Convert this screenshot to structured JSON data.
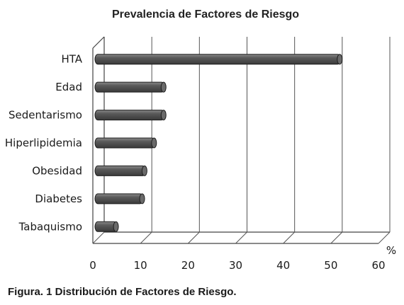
{
  "chart_data": {
    "type": "bar",
    "orientation": "horizontal",
    "title": "Prevalencia de Factores de Riesgo",
    "categories": [
      "HTA",
      "Edad",
      "Sedentarismo",
      "Hiperlipidemia",
      "Obesidad",
      "Diabetes",
      "Tabaquismo"
    ],
    "values": [
      52,
      15,
      15,
      13,
      11,
      10.5,
      5
    ],
    "xlabel": "%",
    "ylabel": "",
    "xlim": [
      0,
      60
    ],
    "xticks": [
      "0",
      "10",
      "20",
      "30",
      "40",
      "50",
      "60"
    ],
    "grid": true,
    "legend": "none",
    "bar_color": "#3a3a3a"
  },
  "caption": "Figura. 1 Distribución de Factores de Riesgo."
}
